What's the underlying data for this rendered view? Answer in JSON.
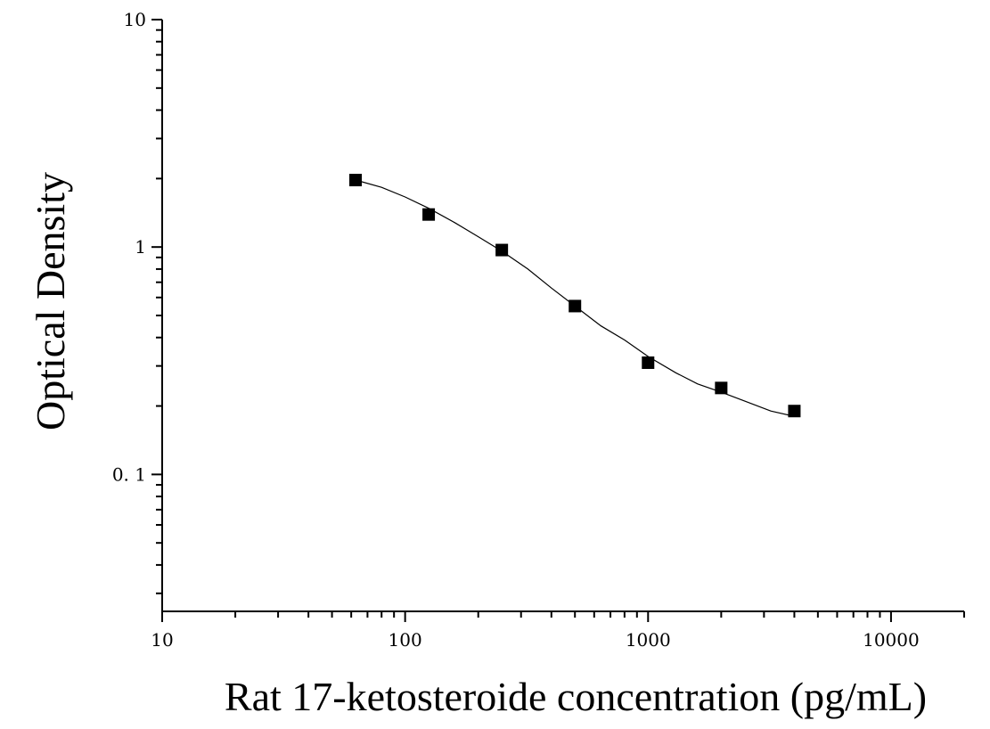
{
  "chart_data": {
    "type": "scatter",
    "title": "",
    "xlabel": "Rat 17-ketosteroide concentration (pg/mL)",
    "ylabel": "Optical Density",
    "xscale": "log",
    "yscale": "log",
    "xlim": [
      10,
      20000
    ],
    "ylim": [
      0.025,
      10
    ],
    "xticks": [
      {
        "value": 10,
        "label": "10"
      },
      {
        "value": 100,
        "label": "100"
      },
      {
        "value": 1000,
        "label": "1000"
      },
      {
        "value": 10000,
        "label": "10000"
      }
    ],
    "yticks": [
      {
        "value": 0.1,
        "label": "0. 1"
      },
      {
        "value": 1,
        "label": "1"
      },
      {
        "value": 10,
        "label": "10"
      }
    ],
    "grid": false,
    "legend": "none",
    "series": [
      {
        "marker": "square",
        "color": "#000000",
        "x": [
          62.5,
          125,
          250,
          500,
          1000,
          2000,
          4000
        ],
        "y": [
          1.97,
          1.39,
          0.97,
          0.55,
          0.31,
          0.24,
          0.19
        ]
      }
    ],
    "fit_curve": {
      "color": "#000000",
      "x": [
        62.5,
        80,
        100,
        125,
        160,
        200,
        250,
        320,
        400,
        500,
        640,
        800,
        1000,
        1300,
        1600,
        2000,
        2500,
        3200,
        4000
      ],
      "y": [
        1.97,
        1.83,
        1.66,
        1.48,
        1.28,
        1.11,
        0.96,
        0.8,
        0.66,
        0.55,
        0.45,
        0.39,
        0.33,
        0.28,
        0.25,
        0.23,
        0.21,
        0.19,
        0.18
      ]
    }
  }
}
